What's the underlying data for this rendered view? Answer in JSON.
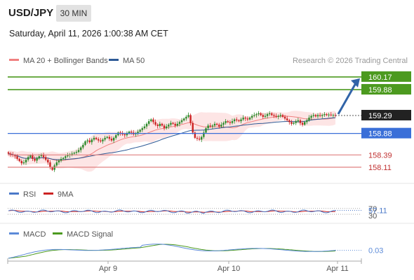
{
  "header": {
    "symbol": "USD/JPY",
    "timeframe": "30 MIN",
    "datetime": "Saturday, April 11, 2026 1:00:38 AM CET"
  },
  "colors": {
    "green_level": "#4c9a1f",
    "blue_level": "#3a6fd8",
    "red_level": "#e08080",
    "ma20": "#f08080",
    "ma50": "#2e5a96",
    "band_fill": "#fde0e0",
    "arrow": "#3164a8",
    "rsi": "#4a78c8",
    "rsi_ma": "#cc2222",
    "macd": "#5b8ad8",
    "macd_signal": "#4c9a1f",
    "current_price_bg": "#222222"
  },
  "chart_data": [
    {
      "type": "candlestick",
      "panel": "price",
      "legend": [
        {
          "name": "MA 20 + Bollinger Bands",
          "color": "#f08080"
        },
        {
          "name": "MA 50",
          "color": "#2e5a96"
        }
      ],
      "attribution": "Research © 2026 Trading Central",
      "x_ticks": [
        "Apr 9",
        "Apr 10",
        "Apr 11"
      ],
      "ylim": [
        157.9,
        160.36
      ],
      "current_price": 159.29,
      "levels": [
        {
          "value": 160.17,
          "label": "160.17",
          "kind": "resistance",
          "color": "#4c9a1f",
          "style": "line",
          "label_style": "box"
        },
        {
          "value": 159.88,
          "label": "159.88",
          "kind": "resistance",
          "color": "#4c9a1f",
          "style": "line",
          "label_style": "box"
        },
        {
          "value": 158.88,
          "label": "158.88",
          "kind": "pivot",
          "color": "#3a6fd8",
          "style": "line",
          "label_style": "box"
        },
        {
          "value": 158.39,
          "label": "158.39",
          "kind": "support",
          "color": "#e08080",
          "style": "line",
          "label_style": "text"
        },
        {
          "value": 158.11,
          "label": "158.11",
          "kind": "support",
          "color": "#e08080",
          "style": "line",
          "label_style": "text"
        }
      ],
      "arrow": {
        "from": 159.29,
        "to": 160.17,
        "direction": "up"
      },
      "candles_close": [
        158.42,
        158.4,
        158.38,
        158.36,
        158.3,
        158.25,
        158.2,
        158.22,
        158.28,
        158.34,
        158.38,
        158.3,
        158.26,
        158.32,
        158.36,
        158.4,
        158.34,
        158.28,
        158.22,
        158.1,
        158.05,
        158.15,
        158.22,
        158.26,
        158.3,
        158.32,
        158.36,
        158.38,
        158.4,
        158.42,
        158.44,
        158.46,
        158.5,
        158.56,
        158.62,
        158.7,
        158.72,
        158.68,
        158.74,
        158.78,
        158.75,
        158.72,
        158.7,
        158.74,
        158.78,
        158.8,
        158.76,
        158.72,
        158.78,
        158.84,
        158.9,
        158.88,
        158.86,
        158.84,
        158.88,
        158.92,
        158.9,
        158.86,
        158.88,
        158.92,
        158.96,
        159.0,
        159.04,
        159.1,
        159.16,
        159.2,
        159.14,
        159.08,
        159.05,
        159.1,
        159.06,
        159.0,
        159.04,
        159.08,
        159.12,
        159.1,
        159.06,
        159.1,
        159.14,
        159.18,
        159.22,
        159.26,
        159.3,
        159.12,
        158.9,
        158.78,
        158.76,
        158.74,
        158.8,
        158.9,
        159.0,
        159.06,
        159.04,
        159.06,
        159.1,
        159.08,
        159.04,
        159.08,
        159.12,
        159.16,
        159.14,
        159.12,
        159.16,
        159.2,
        159.18,
        159.16,
        159.2,
        159.24,
        159.22,
        159.2,
        159.24,
        159.28,
        159.3,
        159.32,
        159.34,
        159.3,
        159.26,
        159.28,
        159.32,
        159.34,
        159.3,
        159.28,
        159.26,
        159.28,
        159.3,
        159.26,
        159.22,
        159.18,
        159.14,
        159.1,
        159.12,
        159.16,
        159.18,
        159.12,
        159.08,
        159.14,
        159.18,
        159.24,
        159.28,
        159.3,
        159.27,
        159.3,
        159.28,
        159.3,
        159.32,
        159.3,
        159.31,
        159.3,
        159.3,
        159.29
      ]
    },
    {
      "type": "line",
      "panel": "rsi",
      "series": [
        {
          "name": "RSI",
          "color": "#4a78c8",
          "last": 57.11
        },
        {
          "name": "9MA",
          "color": "#cc2222"
        }
      ],
      "y_ticks": [
        70,
        30
      ],
      "ylim": [
        0,
        100
      ],
      "last_value_label": "57.11"
    },
    {
      "type": "line",
      "panel": "macd",
      "series": [
        {
          "name": "MACD",
          "color": "#5b8ad8",
          "last": 0.03
        },
        {
          "name": "MACD Signal",
          "color": "#4c9a1f"
        }
      ],
      "last_value_label": "0.03"
    }
  ]
}
